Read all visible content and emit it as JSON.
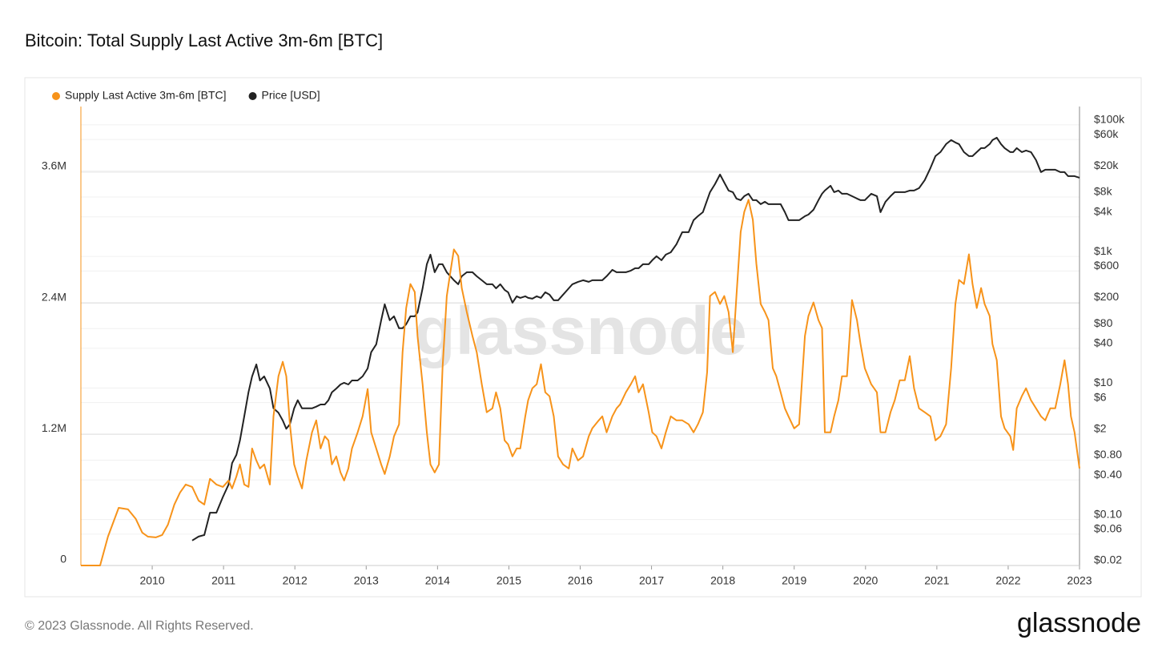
{
  "chart_data": {
    "type": "line",
    "title": "Bitcoin: Total Supply Last Active 3m-6m [BTC]",
    "watermark": "glassnode",
    "footer": "© 2023 Glassnode. All Rights Reserved.",
    "logo": "glassnode",
    "grid": true,
    "y2scale": "log",
    "xlim": [
      2009,
      2023
    ],
    "xticks": [
      2010,
      2011,
      2012,
      2013,
      2014,
      2015,
      2016,
      2017,
      2018,
      2019,
      2020,
      2021,
      2022,
      2023
    ],
    "ylim": [
      0,
      4200000
    ],
    "yticks": [
      0,
      {
        "value": 1200000,
        "label": "1.2M"
      },
      {
        "value": 2400000,
        "label": "2.4M"
      },
      {
        "value": 3600000,
        "label": "3.6M"
      }
    ],
    "y2lim": [
      0.02,
      190000
    ],
    "y2ticks": [
      {
        "value": 100000,
        "label": "$100k"
      },
      {
        "value": 60000,
        "label": "$60k"
      },
      {
        "value": 20000,
        "label": "$20k"
      },
      {
        "value": 8000,
        "label": "$8k"
      },
      {
        "value": 4000,
        "label": "$4k"
      },
      {
        "value": 1000,
        "label": "$1k"
      },
      {
        "value": 600,
        "label": "$600"
      },
      {
        "value": 200,
        "label": "$200"
      },
      {
        "value": 80,
        "label": "$80"
      },
      {
        "value": 40,
        "label": "$40"
      },
      {
        "value": 10,
        "label": "$10"
      },
      {
        "value": 6,
        "label": "$6"
      },
      {
        "value": 2,
        "label": "$2"
      },
      {
        "value": 0.8,
        "label": "$0.80"
      },
      {
        "value": 0.4,
        "label": "$0.40"
      },
      {
        "value": 0.1,
        "label": "$0.10"
      },
      {
        "value": 0.06,
        "label": "$0.06"
      },
      {
        "value": 0.02,
        "label": "$0.02"
      }
    ],
    "x": [
      2009.0,
      2009.27,
      2009.38,
      2009.53,
      2009.66,
      2009.77,
      2009.86,
      2009.94,
      2010.05,
      2010.14,
      2010.22,
      2010.31,
      2010.39,
      2010.47,
      2010.56,
      2010.65,
      2010.73,
      2010.81,
      2010.9,
      2010.99,
      2011.07,
      2011.12,
      2011.18,
      2011.23,
      2011.29,
      2011.35,
      2011.4,
      2011.46,
      2011.51,
      2011.57,
      2011.65,
      2011.7,
      2011.77,
      2011.83,
      2011.88,
      2011.93,
      2011.99,
      2012.04,
      2012.1,
      2012.16,
      2012.24,
      2012.3,
      2012.36,
      2012.42,
      2012.47,
      2012.52,
      2012.58,
      2012.64,
      2012.69,
      2012.75,
      2012.8,
      2012.88,
      2012.95,
      2013.02,
      2013.07,
      2013.14,
      2013.21,
      2013.26,
      2013.33,
      2013.39,
      2013.46,
      2013.51,
      2013.56,
      2013.62,
      2013.68,
      2013.72,
      2013.79,
      2013.85,
      2013.9,
      2013.96,
      2014.02,
      2014.07,
      2014.13,
      2014.18,
      2014.23,
      2014.29,
      2014.34,
      2014.41,
      2014.49,
      2014.55,
      2014.62,
      2014.69,
      2014.77,
      2014.82,
      2014.88,
      2014.94,
      2014.99,
      2015.05,
      2015.11,
      2015.16,
      2015.23,
      2015.27,
      2015.33,
      2015.39,
      2015.45,
      2015.51,
      2015.57,
      2015.63,
      2015.69,
      2015.76,
      2015.84,
      2015.89,
      2015.97,
      2016.04,
      2016.12,
      2016.17,
      2016.26,
      2016.31,
      2016.37,
      2016.45,
      2016.51,
      2016.56,
      2016.64,
      2016.71,
      2016.77,
      2016.82,
      2016.88,
      2016.96,
      2017.01,
      2017.07,
      2017.14,
      2017.2,
      2017.27,
      2017.35,
      2017.43,
      2017.52,
      2017.59,
      2017.65,
      2017.72,
      2017.78,
      2017.82,
      2017.89,
      2017.96,
      2018.02,
      2018.08,
      2018.14,
      2018.19,
      2018.25,
      2018.3,
      2018.36,
      2018.42,
      2018.47,
      2018.53,
      2018.59,
      2018.64,
      2018.7,
      2018.75,
      2018.81,
      2018.87,
      2018.92,
      2019.0,
      2019.07,
      2019.15,
      2019.2,
      2019.27,
      2019.34,
      2019.39,
      2019.43,
      2019.51,
      2019.56,
      2019.62,
      2019.67,
      2019.74,
      2019.81,
      2019.88,
      2019.93,
      2019.99,
      2020.08,
      2020.16,
      2020.21,
      2020.28,
      2020.35,
      2020.41,
      2020.48,
      2020.55,
      2020.62,
      2020.68,
      2020.75,
      2020.83,
      2020.91,
      2020.98,
      2021.05,
      2021.13,
      2021.2,
      2021.26,
      2021.31,
      2021.38,
      2021.45,
      2021.5,
      2021.56,
      2021.62,
      2021.67,
      2021.74,
      2021.78,
      2021.84,
      2021.9,
      2021.95,
      2022.03,
      2022.07,
      2022.12,
      2022.19,
      2022.25,
      2022.32,
      2022.39,
      2022.46,
      2022.52,
      2022.59,
      2022.66,
      2022.73,
      2022.79,
      2022.84,
      2022.88,
      2022.93,
      2023.0
    ],
    "series": [
      {
        "name": "Supply Last Active 3m-6m [BTC]",
        "color": "#f7931a",
        "axis": "y",
        "values": [
          0,
          0,
          264000,
          528000,
          514000,
          426000,
          301000,
          264000,
          257000,
          279000,
          374000,
          558000,
          668000,
          741000,
          719000,
          594000,
          558000,
          793000,
          741000,
          719000,
          778000,
          705000,
          815000,
          925000,
          741000,
          719000,
          1071000,
          961000,
          888000,
          925000,
          741000,
          1365000,
          1732000,
          1864000,
          1732000,
          1292000,
          925000,
          815000,
          705000,
          961000,
          1218000,
          1328000,
          1071000,
          1182000,
          1145000,
          925000,
          998000,
          851000,
          778000,
          888000,
          1071000,
          1218000,
          1365000,
          1615000,
          1218000,
          1071000,
          925000,
          837000,
          998000,
          1182000,
          1292000,
          1952000,
          2356000,
          2576000,
          2503000,
          2099000,
          1659000,
          1218000,
          925000,
          851000,
          925000,
          1805000,
          2466000,
          2686000,
          2892000,
          2833000,
          2539000,
          2319000,
          2099000,
          1952000,
          1659000,
          1402000,
          1438000,
          1585000,
          1438000,
          1145000,
          1108000,
          998000,
          1071000,
          1071000,
          1365000,
          1512000,
          1622000,
          1659000,
          1842000,
          1585000,
          1549000,
          1365000,
          998000,
          925000,
          888000,
          1071000,
          961000,
          998000,
          1182000,
          1255000,
          1328000,
          1365000,
          1218000,
          1365000,
          1438000,
          1475000,
          1585000,
          1659000,
          1732000,
          1585000,
          1659000,
          1402000,
          1218000,
          1182000,
          1071000,
          1218000,
          1365000,
          1328000,
          1328000,
          1292000,
          1218000,
          1292000,
          1402000,
          1769000,
          2466000,
          2503000,
          2393000,
          2466000,
          2319000,
          1952000,
          2466000,
          3053000,
          3237000,
          3347000,
          3163000,
          2760000,
          2393000,
          2319000,
          2246000,
          1805000,
          1732000,
          1585000,
          1438000,
          1365000,
          1255000,
          1292000,
          2099000,
          2283000,
          2407000,
          2246000,
          2172000,
          1218000,
          1218000,
          1365000,
          1512000,
          1732000,
          1732000,
          2429000,
          2246000,
          2026000,
          1805000,
          1659000,
          1585000,
          1218000,
          1218000,
          1402000,
          1512000,
          1695000,
          1695000,
          1916000,
          1622000,
          1438000,
          1402000,
          1365000,
          1145000,
          1182000,
          1292000,
          1805000,
          2393000,
          2613000,
          2576000,
          2848000,
          2576000,
          2356000,
          2539000,
          2393000,
          2283000,
          2026000,
          1879000,
          1365000,
          1255000,
          1182000,
          1057000,
          1438000,
          1549000,
          1622000,
          1512000,
          1438000,
          1365000,
          1328000,
          1438000,
          1438000,
          1659000,
          1879000,
          1659000,
          1365000,
          1218000,
          888000
        ]
      },
      {
        "name": "Price [USD]",
        "color": "#222222",
        "axis": "y2",
        "values": [
          null,
          null,
          null,
          null,
          null,
          null,
          null,
          null,
          null,
          null,
          null,
          null,
          null,
          null,
          0.048,
          0.055,
          0.058,
          0.127,
          0.127,
          0.22,
          0.34,
          0.72,
          0.96,
          1.59,
          3.7,
          8.6,
          15,
          22.8,
          13,
          15,
          9.8,
          4.9,
          4.2,
          3.2,
          2.4,
          2.8,
          4.9,
          6.5,
          4.9,
          4.9,
          4.9,
          5.2,
          5.6,
          5.6,
          6.5,
          8.6,
          9.8,
          11.3,
          12,
          11.3,
          13,
          13,
          15,
          19.8,
          35,
          46,
          107,
          187,
          107,
          123,
          81,
          81,
          93,
          123,
          123,
          141,
          327,
          760,
          1064,
          574,
          760,
          760,
          574,
          499,
          434,
          377,
          499,
          574,
          574,
          499,
          434,
          377,
          377,
          327,
          377,
          310,
          285,
          198,
          248,
          234,
          248,
          234,
          228,
          248,
          234,
          285,
          262,
          215,
          215,
          262,
          327,
          377,
          410,
          434,
          410,
          434,
          434,
          434,
          499,
          625,
          574,
          574,
          574,
          607,
          661,
          661,
          760,
          760,
          875,
          1007,
          875,
          1064,
          1156,
          1531,
          2334,
          2334,
          3556,
          4092,
          4700,
          7164,
          9486,
          12562,
          17578,
          13274,
          10024,
          9486,
          7586,
          7164,
          8242,
          8974,
          7164,
          7164,
          6224,
          6776,
          6224,
          6224,
          6224,
          6224,
          4700,
          3556,
          3556,
          3556,
          4092,
          4326,
          5118,
          7164,
          8974,
          10024,
          11858,
          9486,
          10024,
          8974,
          8974,
          8242,
          7586,
          7164,
          7164,
          8974,
          8242,
          4700,
          6776,
          8242,
          9486,
          9486,
          9486,
          10024,
          10024,
          10916,
          14446,
          21980,
          33500,
          38560,
          51060,
          58760,
          53960,
          51060,
          38560,
          33500,
          33500,
          38560,
          44360,
          44360,
          51060,
          58760,
          63840,
          51060,
          44360,
          38560,
          38560,
          44360,
          38560,
          40740,
          38560,
          29120,
          19142,
          20800,
          20800,
          20800,
          19142,
          19142,
          16636,
          16636,
          16636,
          15704
        ]
      }
    ]
  }
}
